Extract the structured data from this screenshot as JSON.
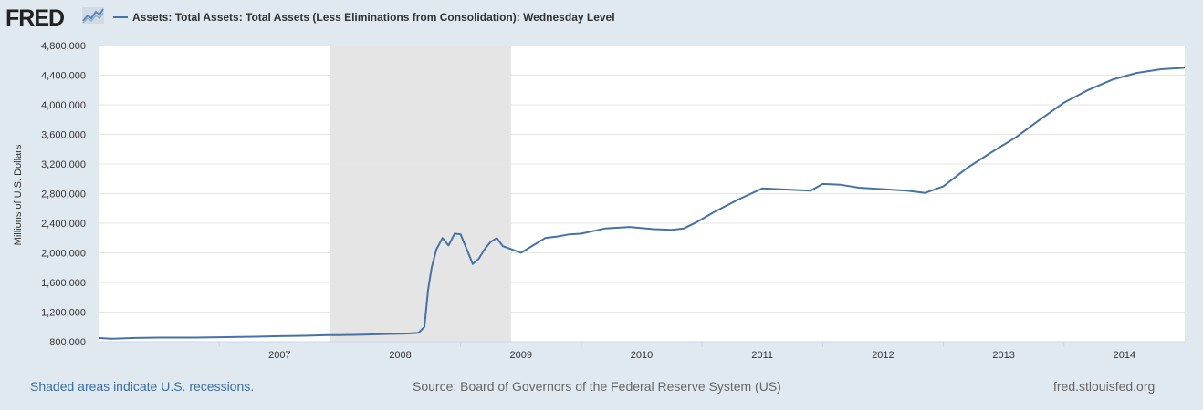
{
  "header": {
    "logo_text": "FRED",
    "legend_label": "Assets: Total Assets: Total Assets (Less Eliminations from Consolidation): Wednesday Level"
  },
  "colors": {
    "series": "#4572a7",
    "recession": "#e5e5e5",
    "background": "#e1e9f0",
    "plot": "#ffffff"
  },
  "footer": {
    "recession_note": "Shaded areas indicate U.S. recessions.",
    "source": "Source: Board of Governors of the Federal Reserve System (US)",
    "site": "fred.stlouisfed.org"
  },
  "chart_data": {
    "type": "line",
    "ylabel": "Millions of U.S. Dollars",
    "xlim": [
      2006.0,
      2015.0
    ],
    "ylim": [
      800000,
      4800000
    ],
    "yticks": [
      800000,
      1200000,
      1600000,
      2000000,
      2400000,
      2800000,
      3200000,
      3600000,
      4000000,
      4400000,
      4800000
    ],
    "yticklabels": [
      "800,000",
      "1,200,000",
      "1,600,000",
      "2,000,000",
      "2,400,000",
      "2,800,000",
      "3,200,000",
      "3,600,000",
      "4,000,000",
      "4,400,000",
      "4,800,000"
    ],
    "xticks": [
      2007,
      2008,
      2009,
      2010,
      2011,
      2012,
      2013,
      2014
    ],
    "xticklabels": [
      "2007",
      "2008",
      "2009",
      "2010",
      "2011",
      "2012",
      "2013",
      "2014"
    ],
    "recessions": [
      [
        2007.917,
        2009.417
      ]
    ],
    "series": [
      {
        "name": "Assets: Total Assets: Total Assets (Less Eliminations from Consolidation): Wednesday Level",
        "x": [
          2006.0,
          2006.1,
          2006.3,
          2006.5,
          2006.8,
          2007.0,
          2007.3,
          2007.5,
          2007.7,
          2007.9,
          2008.0,
          2008.2,
          2008.4,
          2008.55,
          2008.65,
          2008.7,
          2008.73,
          2008.76,
          2008.8,
          2008.85,
          2008.9,
          2008.95,
          2009.0,
          2009.05,
          2009.1,
          2009.15,
          2009.2,
          2009.25,
          2009.3,
          2009.35,
          2009.4,
          2009.5,
          2009.6,
          2009.7,
          2009.8,
          2009.9,
          2010.0,
          2010.2,
          2010.4,
          2010.6,
          2010.75,
          2010.85,
          2010.95,
          2011.1,
          2011.3,
          2011.5,
          2011.75,
          2011.9,
          2012.0,
          2012.15,
          2012.3,
          2012.5,
          2012.7,
          2012.85,
          2013.0,
          2013.2,
          2013.4,
          2013.6,
          2013.8,
          2014.0,
          2014.2,
          2014.4,
          2014.6,
          2014.8,
          2015.0
        ],
        "y": [
          850000,
          840000,
          850000,
          855000,
          855000,
          860000,
          868000,
          875000,
          880000,
          890000,
          890000,
          895000,
          905000,
          910000,
          920000,
          1000000,
          1500000,
          1800000,
          2050000,
          2200000,
          2100000,
          2260000,
          2250000,
          2050000,
          1850000,
          1920000,
          2050000,
          2150000,
          2200000,
          2090000,
          2060000,
          2000000,
          2100000,
          2200000,
          2220000,
          2250000,
          2260000,
          2330000,
          2350000,
          2320000,
          2310000,
          2330000,
          2410000,
          2550000,
          2720000,
          2870000,
          2850000,
          2840000,
          2930000,
          2920000,
          2880000,
          2860000,
          2840000,
          2810000,
          2900000,
          3150000,
          3360000,
          3560000,
          3800000,
          4030000,
          4200000,
          4340000,
          4430000,
          4480000,
          4500000
        ]
      }
    ]
  }
}
